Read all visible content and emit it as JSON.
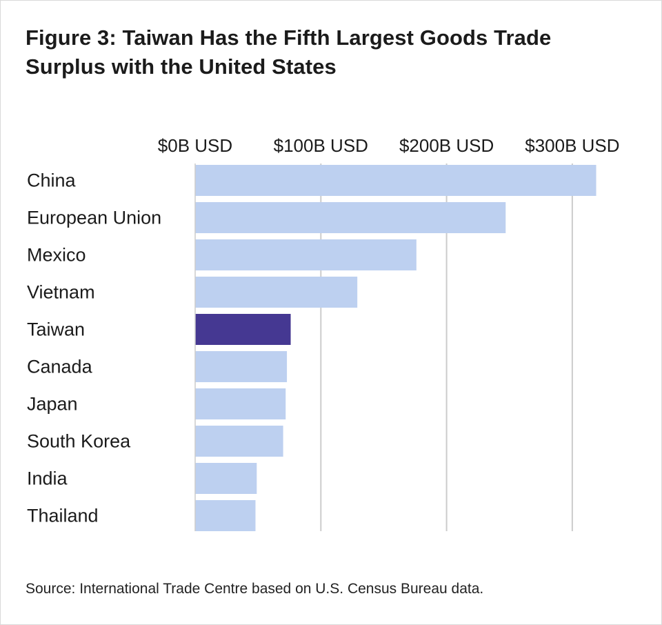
{
  "colors": {
    "bar": "#bdd0f0",
    "highlight": "#453892",
    "grid": "#cccccc",
    "text": "#1b1b1b"
  },
  "chart_data": {
    "type": "bar",
    "orientation": "horizontal",
    "title": "Figure 3: Taiwan Has the Fifth Largest Goods Trade Surplus with the United States",
    "categories": [
      "China",
      "European Union",
      "Mexico",
      "Vietnam",
      "Taiwan",
      "Canada",
      "Japan",
      "South Korea",
      "India",
      "Thailand"
    ],
    "values": [
      319,
      247,
      176,
      129,
      76,
      73,
      72,
      70,
      49,
      48
    ],
    "highlight": "Taiwan",
    "xlim": [
      0,
      300
    ],
    "xticks": [
      0,
      100,
      200,
      300
    ],
    "xtick_labels": [
      "$0B USD",
      "$100B USD",
      "$200B USD",
      "$300B USD"
    ],
    "xlabel": "",
    "ylabel": "",
    "grid": true,
    "axis_position": "top"
  },
  "source": "Source: International Trade Centre based on U.S. Census Bureau data."
}
